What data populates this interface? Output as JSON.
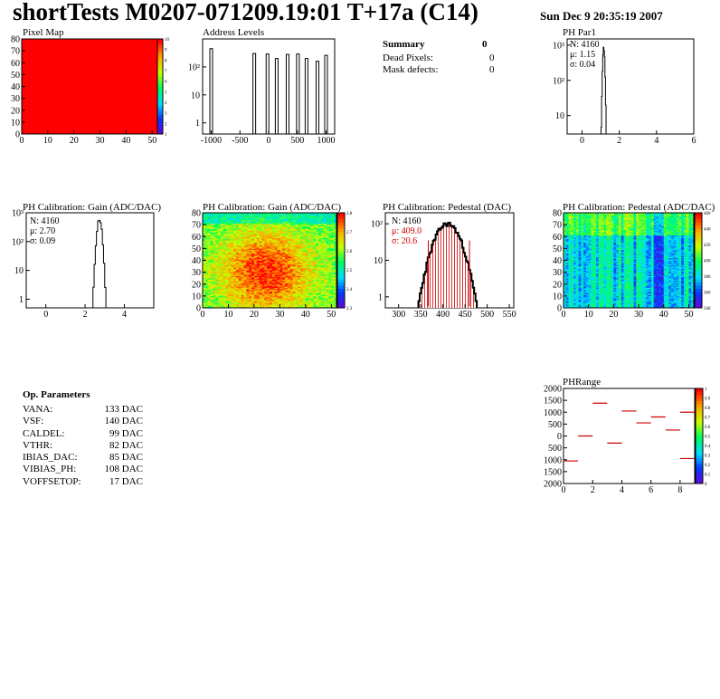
{
  "header": {
    "title": "shortTests M0207-071209.19:01 T+17a (C14)",
    "timestamp": "Sun Dec  9 20:35:19 2007"
  },
  "panels": {
    "pixel_map": {
      "title": "Pixel Map",
      "xticks": [
        "0",
        "10",
        "20",
        "30",
        "40",
        "50"
      ],
      "yticks": [
        "0",
        "10",
        "20",
        "30",
        "40",
        "50",
        "60",
        "70",
        "80"
      ],
      "zticks": [
        "10",
        "9",
        "8",
        "7",
        "6",
        "5",
        "4",
        "3",
        "2",
        "1"
      ]
    },
    "address_levels": {
      "title": "Address Levels",
      "xticks": [
        "-1000",
        "-500",
        "0",
        "500",
        "1000"
      ],
      "yticks": [
        "1",
        "10",
        "10²"
      ]
    },
    "summary": {
      "title": "Summary",
      "title_value": "0",
      "rows": [
        {
          "label": "Dead Pixels:",
          "value": "0"
        },
        {
          "label": "Mask defects:",
          "value": "0"
        }
      ]
    },
    "ph_par1": {
      "title": "PH Par1",
      "stats": [
        "N: 4160",
        "μ: 1.15",
        "σ: 0.04"
      ],
      "xticks": [
        "0",
        "2",
        "4",
        "6"
      ],
      "yticks": [
        "10",
        "10²",
        "10³"
      ]
    },
    "gain_hist": {
      "title": "PH Calibration: Gain (ADC/DAC)",
      "stats": [
        "N: 4160",
        "μ: 2.70",
        "σ: 0.09"
      ],
      "xticks": [
        "0",
        "2",
        "4"
      ],
      "yticks": [
        "1",
        "10",
        "10²",
        "10³"
      ]
    },
    "gain_map": {
      "title": "PH Calibration: Gain (ADC/DAC)",
      "xticks": [
        "0",
        "10",
        "20",
        "30",
        "40",
        "50"
      ],
      "yticks": [
        "0",
        "10",
        "20",
        "30",
        "40",
        "50",
        "60",
        "70",
        "80"
      ],
      "zticks": [
        "2.8",
        "2.7",
        "2.6",
        "2.5",
        "2.4",
        "2.3"
      ]
    },
    "pedestal_hist": {
      "title": "PH Calibration: Pedestal (DAC)",
      "stats": [
        "N: 4160",
        "μ: 409.0",
        "σ: 20.6"
      ],
      "xticks": [
        "300",
        "350",
        "400",
        "450",
        "500",
        "550"
      ],
      "yticks": [
        "1",
        "10",
        "10²"
      ]
    },
    "pedestal_map": {
      "title": "PH Calibration: Pedestal (ADC/DAC)",
      "xticks": [
        "0",
        "10",
        "20",
        "30",
        "40",
        "50"
      ],
      "yticks": [
        "0",
        "10",
        "20",
        "30",
        "40",
        "50",
        "60",
        "70",
        "80"
      ],
      "zticks": [
        "460",
        "440",
        "420",
        "400",
        "380",
        "360",
        "340"
      ]
    },
    "op_params": {
      "title": "Op. Parameters",
      "rows": [
        {
          "name": "VANA:",
          "value": "133 DAC"
        },
        {
          "name": "VSF:",
          "value": "140 DAC"
        },
        {
          "name": "CALDEL:",
          "value": "99 DAC"
        },
        {
          "name": "VTHR:",
          "value": "82 DAC"
        },
        {
          "name": "IBIAS_DAC:",
          "value": "85 DAC"
        },
        {
          "name": "VIBIAS_PH:",
          "value": "108 DAC"
        },
        {
          "name": "VOFFSETOP:",
          "value": "17 DAC"
        }
      ]
    },
    "ph_range": {
      "title": "PHRange",
      "xticks": [
        "0",
        "2",
        "4",
        "6",
        "8"
      ],
      "yticks": [
        "2000",
        "1500",
        "1000",
        "500",
        "0",
        "500",
        "1000",
        "1500",
        "2000"
      ],
      "zticks": [
        "1",
        "0.9",
        "0.8",
        "0.7",
        "0.6",
        "0.5",
        "0.4",
        "0.3",
        "0.2",
        "0.1",
        "0"
      ]
    }
  },
  "chart_data": [
    {
      "type": "heatmap",
      "title": "Pixel Map",
      "x_range": [
        0,
        52
      ],
      "y_range": [
        0,
        80
      ],
      "z_range": [
        0,
        10
      ],
      "value": 10,
      "note_color": "#ff0000"
    },
    {
      "type": "bar",
      "title": "Address Levels",
      "log_y": true,
      "x_range": [
        -1150,
        1150
      ],
      "y_range": [
        0.4,
        1000
      ],
      "peaks": [
        {
          "x": -1000,
          "y": 450
        },
        {
          "x": -250,
          "y": 300
        },
        {
          "x": -20,
          "y": 290
        },
        {
          "x": 140,
          "y": 200
        },
        {
          "x": 330,
          "y": 280
        },
        {
          "x": 510,
          "y": 290
        },
        {
          "x": 660,
          "y": 200
        },
        {
          "x": 850,
          "y": 160
        },
        {
          "x": 1000,
          "y": 260
        }
      ]
    },
    {
      "type": "bar",
      "title": "PH Par1",
      "log_y": true,
      "x_range": [
        -0.8,
        6
      ],
      "y_range": [
        3,
        1500
      ],
      "mean": 1.15,
      "sigma": 0.04,
      "peak": 900
    },
    {
      "type": "bar",
      "title": "PH Calibration: Gain (ADC/DAC)",
      "log_y": true,
      "x_range": [
        -1,
        5.5
      ],
      "y_range": [
        0.5,
        1000
      ],
      "mean": 2.7,
      "sigma": 0.09,
      "peak": 600
    },
    {
      "type": "heatmap",
      "title": "PH Calibration: Gain (ADC/DAC)",
      "x_range": [
        0,
        52
      ],
      "y_range": [
        0,
        80
      ],
      "z_range": [
        2.25,
        2.85
      ]
    },
    {
      "type": "bar",
      "title": "PH Calibration: Pedestal (DAC)",
      "log_y": true,
      "x_range": [
        270,
        560
      ],
      "y_range": [
        0.5,
        200
      ],
      "mean": 409.0,
      "sigma": 20.6,
      "peak": 100,
      "cut_lines": [
        367,
        460
      ]
    },
    {
      "type": "heatmap",
      "title": "PH Calibration: Pedestal (ADC/DAC)",
      "x_range": [
        0,
        52
      ],
      "y_range": [
        0,
        80
      ],
      "z_range": [
        330,
        470
      ]
    },
    {
      "type": "scatter",
      "title": "PHRange",
      "x_range": [
        0,
        9
      ],
      "y_range": [
        -2000,
        2000
      ],
      "segments": [
        {
          "x": 0.5,
          "y": -1050
        },
        {
          "x": 1.5,
          "y": 0
        },
        {
          "x": 2.5,
          "y": 1380
        },
        {
          "x": 3.5,
          "y": -300
        },
        {
          "x": 4.5,
          "y": 1050
        },
        {
          "x": 5.5,
          "y": 550
        },
        {
          "x": 6.5,
          "y": 800
        },
        {
          "x": 7.5,
          "y": 250
        },
        {
          "x": 8.5,
          "y": 1000
        },
        {
          "x": 8.5,
          "y": -950
        }
      ]
    }
  ]
}
